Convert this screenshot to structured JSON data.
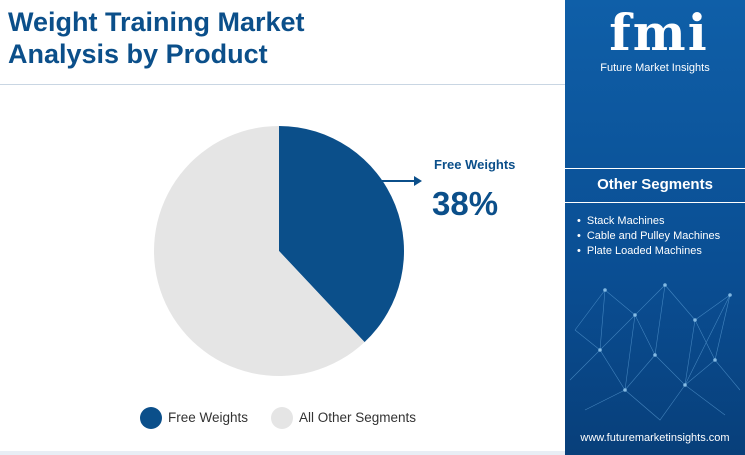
{
  "title_line1": "Weight Training Market",
  "title_line2": "Analysis by Product",
  "colors": {
    "primary": "#0b4f8a",
    "other": "#e5e5e5",
    "panel": "#0f5fa8"
  },
  "chart_data": {
    "type": "pie",
    "categories": [
      "Free Weights",
      "All Other Segments"
    ],
    "values": [
      38,
      62
    ],
    "colors": [
      "#0b4f8a",
      "#e5e5e5"
    ],
    "legend_position": "bottom"
  },
  "callout": {
    "label": "Free Weights",
    "value": "38%"
  },
  "legend": [
    {
      "label": "Free Weights",
      "color": "#0b4f8a"
    },
    {
      "label": "All Other Segments",
      "color": "#e5e5e5"
    }
  ],
  "panel": {
    "logo": "fmi",
    "logo_sub": "Future Market Insights",
    "heading": "Other Segments",
    "items": [
      "Stack Machines",
      "Cable and Pulley Machines",
      "Plate Loaded Machines"
    ],
    "website": "www.futuremarketinsights.com"
  }
}
